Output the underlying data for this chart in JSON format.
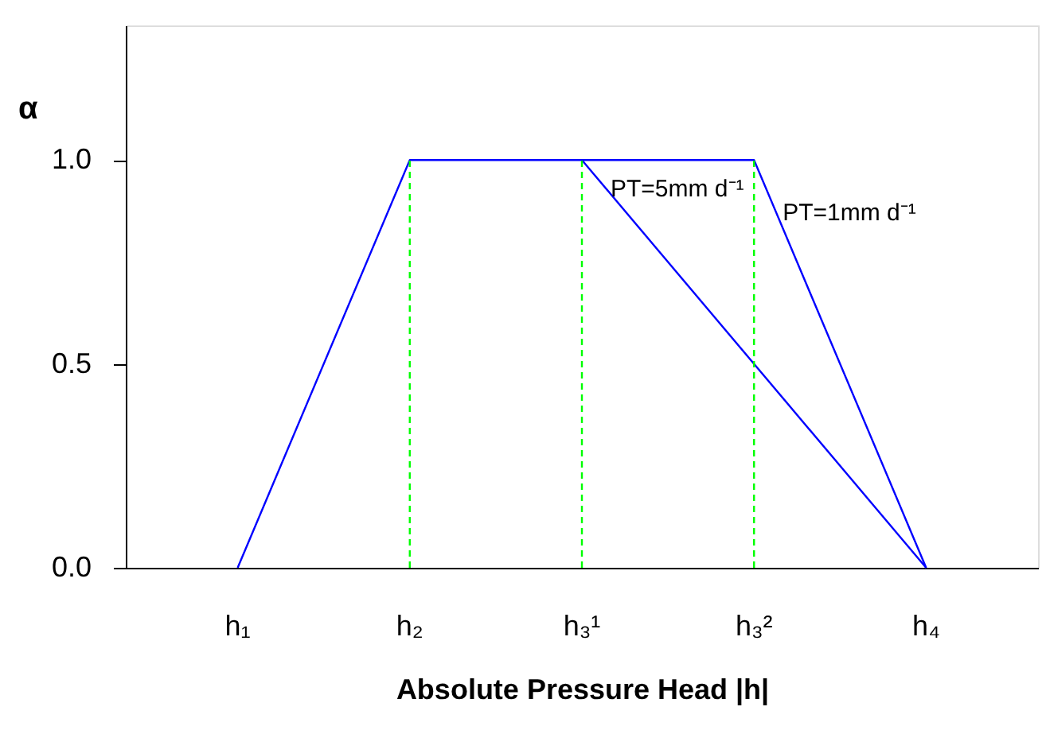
{
  "chart_data": {
    "type": "line",
    "xlabel": "Absolute Pressure Head |h|",
    "ylabel": "α",
    "categories": [
      "h₁",
      "h₂",
      "h₃¹",
      "h₃²",
      "h₄"
    ],
    "ylim": [
      0,
      1.33
    ],
    "yticks": [
      {
        "value": 0,
        "label": "0.0"
      },
      {
        "value": 0.5,
        "label": "0.5"
      },
      {
        "value": 1,
        "label": "1.0"
      }
    ],
    "grid": false,
    "marker": "none",
    "series": [
      {
        "name": "PT=1mm d⁻¹",
        "color": "#0000ff",
        "values": [
          0,
          1,
          1,
          1,
          0
        ],
        "line_style": "solid"
      },
      {
        "name": "PT=5mm d⁻¹",
        "color": "#0000ff",
        "values": [
          null,
          null,
          1,
          null,
          0
        ],
        "line_style": "solid"
      }
    ],
    "ref_lines": [
      {
        "axis": "x",
        "value": "h₂",
        "color": "#00ff00",
        "line_style": "dashed"
      },
      {
        "axis": "x",
        "value": "h₃¹",
        "color": "#00ff00",
        "line_style": "dashed"
      },
      {
        "axis": "x",
        "value": "h₃²",
        "color": "#00ff00",
        "line_style": "dashed"
      }
    ]
  }
}
